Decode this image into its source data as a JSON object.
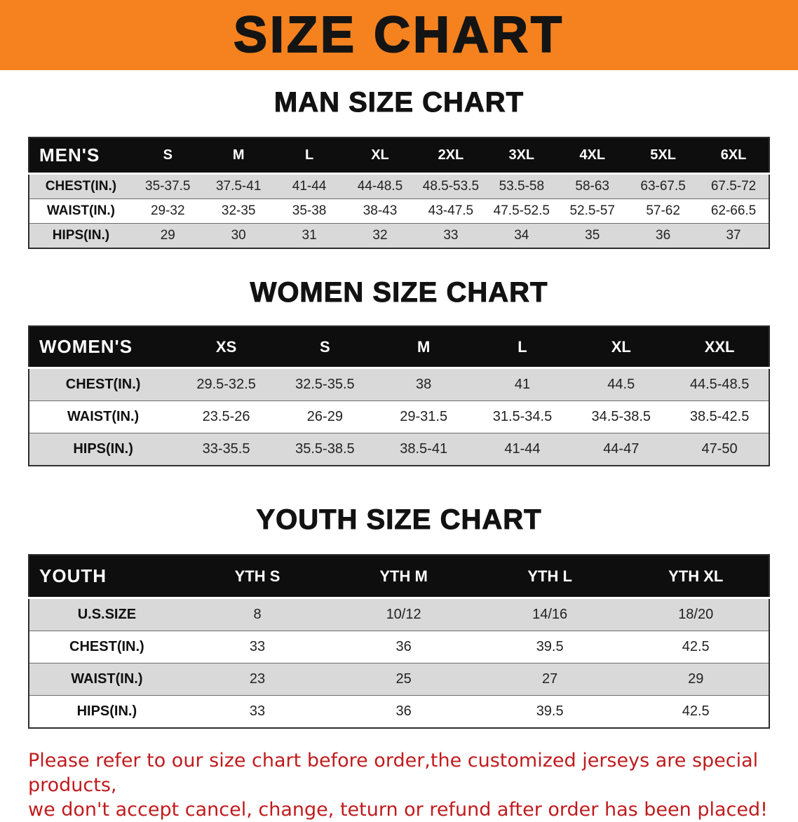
{
  "banner": {
    "title": "SIZE CHART"
  },
  "colors": {
    "banner_bg": "#f5821f",
    "header_band": "#0e0e0e",
    "row_shaded": "#d9d9d9",
    "disclaimer_text": "#c11b1e"
  },
  "sections": [
    {
      "id": "men",
      "title": "MAN SIZE CHART",
      "header": [
        "MEN'S",
        "S",
        "M",
        "L",
        "XL",
        "2XL",
        "3XL",
        "4XL",
        "5XL",
        "6XL"
      ],
      "rows": [
        {
          "label": "CHEST(IN.)",
          "shaded": true,
          "values": [
            "35-37.5",
            "37.5-41",
            "41-44",
            "44-48.5",
            "48.5-53.5",
            "53.5-58",
            "58-63",
            "63-67.5",
            "67.5-72"
          ]
        },
        {
          "label": "WAIST(IN.)",
          "shaded": false,
          "values": [
            "29-32",
            "32-35",
            "35-38",
            "38-43",
            "43-47.5",
            "47.5-52.5",
            "52.5-57",
            "57-62",
            "62-66.5"
          ]
        },
        {
          "label": "HIPS(IN.)",
          "shaded": true,
          "values": [
            "29",
            "30",
            "31",
            "32",
            "33",
            "34",
            "35",
            "36",
            "37"
          ]
        }
      ]
    },
    {
      "id": "women",
      "title": "WOMEN SIZE CHART",
      "header": [
        "WOMEN'S",
        "XS",
        "S",
        "M",
        "L",
        "XL",
        "XXL"
      ],
      "rows": [
        {
          "label": "CHEST(IN.)",
          "shaded": true,
          "values": [
            "29.5-32.5",
            "32.5-35.5",
            "38",
            "41",
            "44.5",
            "44.5-48.5"
          ]
        },
        {
          "label": "WAIST(IN.)",
          "shaded": false,
          "values": [
            "23.5-26",
            "26-29",
            "29-31.5",
            "31.5-34.5",
            "34.5-38.5",
            "38.5-42.5"
          ]
        },
        {
          "label": "HIPS(IN.)",
          "shaded": true,
          "values": [
            "33-35.5",
            "35.5-38.5",
            "38.5-41",
            "41-44",
            "44-47",
            "47-50"
          ]
        }
      ]
    },
    {
      "id": "youth",
      "title": "YOUTH SIZE CHART",
      "header": [
        "YOUTH",
        "YTH S",
        "YTH M",
        "YTH L",
        "YTH XL"
      ],
      "rows": [
        {
          "label": "U.S.SIZE",
          "shaded": true,
          "values": [
            "8",
            "10/12",
            "14/16",
            "18/20"
          ]
        },
        {
          "label": "CHEST(IN.)",
          "shaded": false,
          "values": [
            "33",
            "36",
            "39.5",
            "42.5"
          ]
        },
        {
          "label": "WAIST(IN.)",
          "shaded": true,
          "values": [
            "23",
            "25",
            "27",
            "29"
          ]
        },
        {
          "label": "HIPS(IN.)",
          "shaded": false,
          "values": [
            "33",
            "36",
            "39.5",
            "42.5"
          ]
        }
      ]
    }
  ],
  "disclaimer": {
    "lines": [
      "Please refer to our size chart before order,the customized jerseys are special products,",
      "we don't accept cancel, change, teturn or refund after order has been placed!"
    ]
  }
}
